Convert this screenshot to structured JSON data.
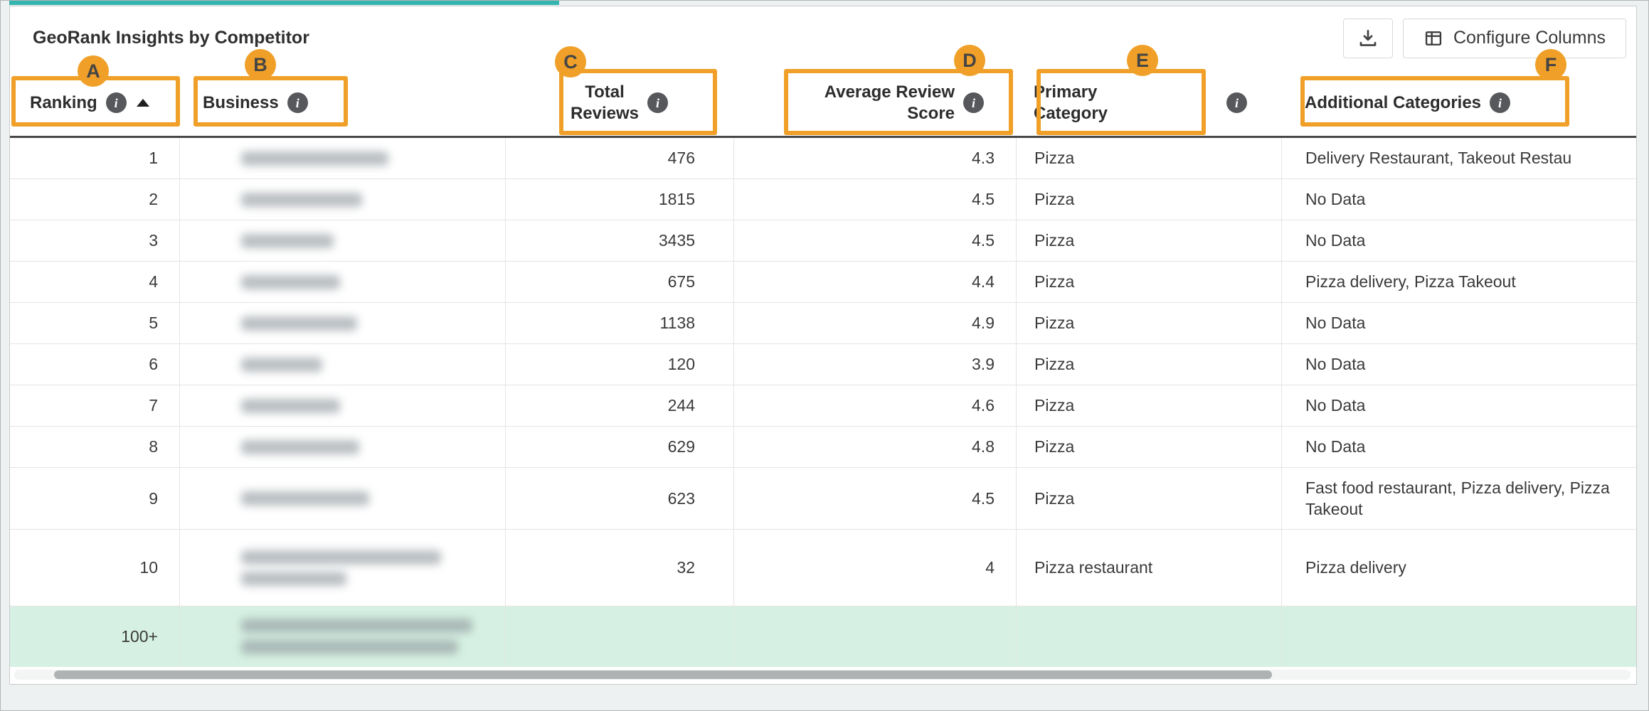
{
  "colors": {
    "annotation_orange": "#F0A028",
    "highlight_row_green": "#D6F1E3",
    "top_strip_teal": "#35B5B0"
  },
  "card": {
    "title": "GeoRank Insights by Competitor",
    "toolbar": {
      "download_button": "download",
      "configure_columns_label": "Configure Columns"
    }
  },
  "annotations": {
    "badges": [
      "A",
      "B",
      "C",
      "D",
      "E",
      "F"
    ]
  },
  "table": {
    "columns": [
      {
        "label_lines": [
          "Ranking"
        ],
        "has_info": true,
        "sort": "asc",
        "badge": "A"
      },
      {
        "label_lines": [
          "Business"
        ],
        "has_info": true,
        "badge": "B"
      },
      {
        "label_lines": [
          "Total",
          "Reviews"
        ],
        "has_info": true,
        "badge": "C"
      },
      {
        "label_lines": [
          "Average Review",
          "Score"
        ],
        "has_info": true,
        "badge": "D"
      },
      {
        "label_lines": [
          "Primary",
          "Category"
        ],
        "has_info": true,
        "badge": "E"
      },
      {
        "label_lines": [
          "Additional Categories"
        ],
        "has_info": true,
        "badge": "F"
      }
    ],
    "rows": [
      {
        "ranking": "1",
        "business_redacted": true,
        "total_reviews": "476",
        "average_review_score": "4.3",
        "primary_category": "Pizza",
        "additional_categories": "Delivery Restaurant, Takeout Restau"
      },
      {
        "ranking": "2",
        "business_redacted": true,
        "total_reviews": "1815",
        "average_review_score": "4.5",
        "primary_category": "Pizza",
        "additional_categories": "No Data"
      },
      {
        "ranking": "3",
        "business_redacted": true,
        "total_reviews": "3435",
        "average_review_score": "4.5",
        "primary_category": "Pizza",
        "additional_categories": "No Data"
      },
      {
        "ranking": "4",
        "business_redacted": true,
        "total_reviews": "675",
        "average_review_score": "4.4",
        "primary_category": "Pizza",
        "additional_categories": "Pizza delivery, Pizza Takeout"
      },
      {
        "ranking": "5",
        "business_redacted": true,
        "total_reviews": "1138",
        "average_review_score": "4.9",
        "primary_category": "Pizza",
        "additional_categories": "No Data"
      },
      {
        "ranking": "6",
        "business_redacted": true,
        "total_reviews": "120",
        "average_review_score": "3.9",
        "primary_category": "Pizza",
        "additional_categories": "No Data"
      },
      {
        "ranking": "7",
        "business_redacted": true,
        "total_reviews": "244",
        "average_review_score": "4.6",
        "primary_category": "Pizza",
        "additional_categories": "No Data"
      },
      {
        "ranking": "8",
        "business_redacted": true,
        "total_reviews": "629",
        "average_review_score": "4.8",
        "primary_category": "Pizza",
        "additional_categories": "No Data"
      },
      {
        "ranking": "9",
        "business_redacted": true,
        "total_reviews": "623",
        "average_review_score": "4.5",
        "primary_category": "Pizza",
        "additional_categories": "Fast food restaurant, Pizza delivery, Pizza Takeout"
      },
      {
        "ranking": "10",
        "business_redacted": true,
        "total_reviews": "32",
        "average_review_score": "4",
        "primary_category": "Pizza restaurant",
        "additional_categories": "Pizza delivery"
      },
      {
        "ranking": "100+",
        "business_redacted": true,
        "total_reviews": "",
        "average_review_score": "",
        "primary_category": "",
        "additional_categories": "",
        "highlighted": true
      }
    ]
  }
}
